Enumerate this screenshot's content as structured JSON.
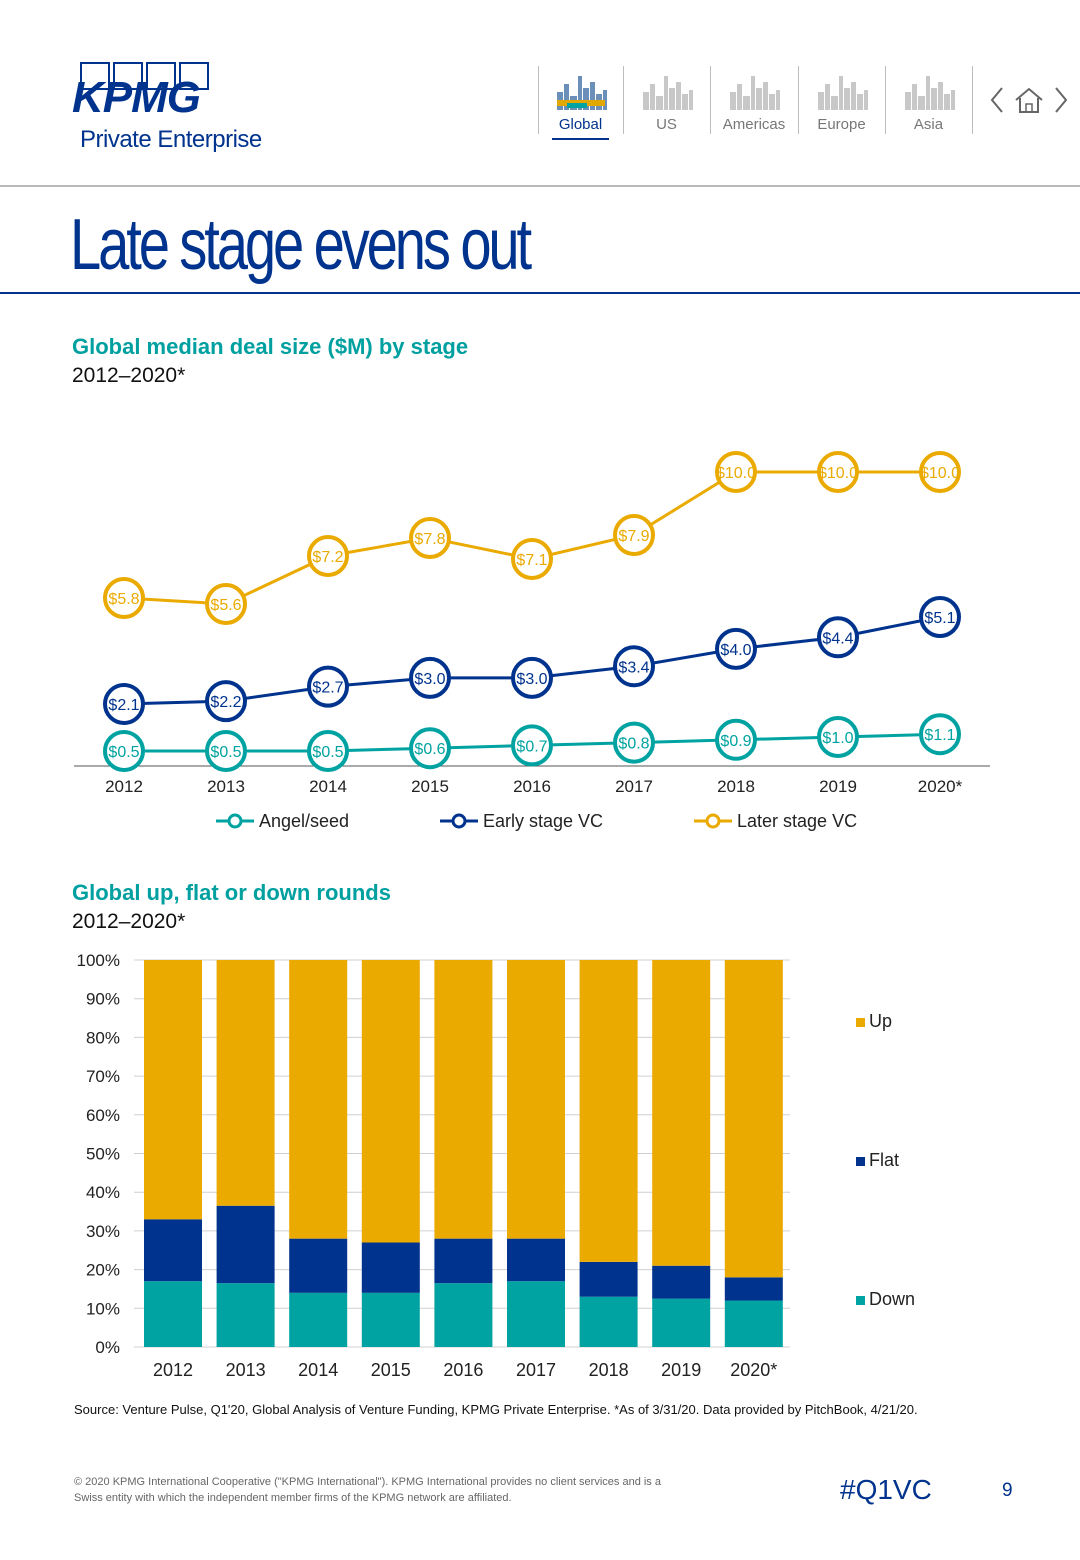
{
  "header": {
    "logo_text": "KPMG",
    "logo_subtitle": "Private Enterprise",
    "nav": [
      {
        "label": "Global",
        "active": true,
        "icon": "skyline-global-icon"
      },
      {
        "label": "US",
        "active": false,
        "icon": "skyline-us-icon"
      },
      {
        "label": "Americas",
        "active": false,
        "icon": "skyline-americas-icon"
      },
      {
        "label": "Europe",
        "active": false,
        "icon": "skyline-europe-icon"
      },
      {
        "label": "Asia",
        "active": false,
        "icon": "skyline-asia-icon"
      }
    ],
    "controls": [
      "chevron-left-icon",
      "home-icon",
      "chevron-right-icon"
    ]
  },
  "page": {
    "title": "Late stage evens out",
    "source": "Source: Venture Pulse, Q1'20, Global Analysis of Venture Funding, KPMG Private Enterprise. *As of 3/31/20. Data provided by PitchBook, 4/21/20.",
    "footer_copyright": "© 2020 KPMG International Cooperative (\"KPMG International\"). KPMG International provides no client services and is a Swiss entity with which the independent member firms of the KPMG network are affiliated.",
    "footer_tag": "#Q1VC",
    "page_number": "9"
  },
  "colors": {
    "brand": "#00338d",
    "teal": "#00a3a1",
    "gold": "#eaaa00",
    "navy": "#00338d"
  },
  "chart_data": [
    {
      "type": "line",
      "title": "Global median deal size ($M) by stage",
      "subtitle": "2012–2020*",
      "categories": [
        "2012",
        "2013",
        "2014",
        "2015",
        "2016",
        "2017",
        "2018",
        "2019",
        "2020*"
      ],
      "series": [
        {
          "name": "Angel/seed",
          "color": "#00a3a1",
          "values": [
            0.5,
            0.5,
            0.5,
            0.6,
            0.7,
            0.8,
            0.9,
            1.0,
            1.1
          ],
          "labels": [
            "$0.5",
            "$0.5",
            "$0.5",
            "$0.6",
            "$0.7",
            "$0.8",
            "$0.9",
            "$1.0",
            "$1.1"
          ]
        },
        {
          "name": "Early stage VC",
          "color": "#00338d",
          "values": [
            2.1,
            2.2,
            2.7,
            3.0,
            3.0,
            3.4,
            4.0,
            4.4,
            5.1
          ],
          "labels": [
            "$2.1",
            "$2.2",
            "$2.7",
            "$3.0",
            "$3.0",
            "$3.4",
            "$4.0",
            "$4.4",
            "$5.1"
          ]
        },
        {
          "name": "Later stage VC",
          "color": "#eaaa00",
          "values": [
            5.8,
            5.6,
            7.2,
            7.8,
            7.1,
            7.9,
            10.0,
            10.0,
            10.0
          ],
          "labels": [
            "$5.8",
            "$5.6",
            "$7.2",
            "$7.8",
            "$7.1",
            "$7.9",
            "$10.0",
            "$10.0",
            "$10.0"
          ]
        }
      ],
      "ylim": [
        0,
        10.5
      ],
      "legend": "bottom"
    },
    {
      "type": "bar",
      "stacked": true,
      "title": "Global up, flat or down rounds",
      "subtitle": "2012–2020*",
      "categories": [
        "2012",
        "2013",
        "2014",
        "2015",
        "2016",
        "2017",
        "2018",
        "2019",
        "2020*"
      ],
      "series": [
        {
          "name": "Down",
          "color": "#00a3a1",
          "values": [
            17,
            16.5,
            14,
            14,
            16.5,
            17,
            13,
            12.5,
            12
          ]
        },
        {
          "name": "Flat",
          "color": "#00338d",
          "values": [
            16,
            20,
            14,
            13,
            11.5,
            11,
            9,
            8.5,
            6
          ]
        },
        {
          "name": "Up",
          "color": "#eaaa00",
          "values": [
            67,
            63.5,
            72,
            73,
            72,
            72,
            78,
            79,
            82
          ]
        }
      ],
      "yticks": [
        "0%",
        "10%",
        "20%",
        "30%",
        "40%",
        "50%",
        "60%",
        "70%",
        "80%",
        "90%",
        "100%"
      ],
      "ylim": [
        0,
        100
      ],
      "legend": "right"
    }
  ]
}
